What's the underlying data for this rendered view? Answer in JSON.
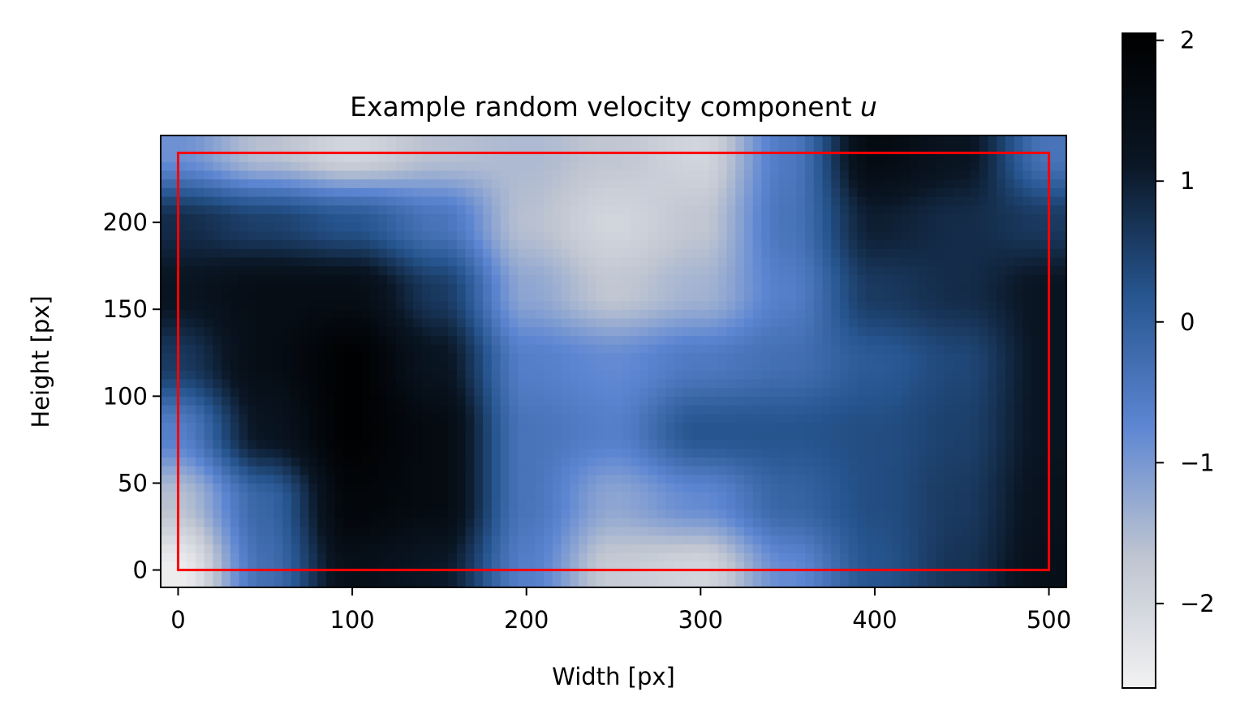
{
  "chart_data": {
    "type": "heatmap",
    "title": "Example random velocity component ",
    "title_var": "u",
    "xlabel": "Width [px]",
    "ylabel": "Height [px]",
    "xlim": [
      -10,
      510
    ],
    "ylim": [
      -10,
      250
    ],
    "xticks": [
      0,
      100,
      200,
      300,
      400,
      500
    ],
    "yticks": [
      0,
      50,
      100,
      150,
      200
    ],
    "xtick_labels": [
      "0",
      "100",
      "200",
      "300",
      "400",
      "500"
    ],
    "ytick_labels": [
      "0",
      "50",
      "100",
      "150",
      "200"
    ],
    "grid": false,
    "colormap": [
      "#f2f2f2",
      "#bfc5d1",
      "#5d86d2",
      "#26558f",
      "#0a1624",
      "#000000"
    ],
    "colorbar": {
      "range": [
        -2.6,
        2.05
      ],
      "ticks": [
        -2,
        -1,
        0,
        1,
        2
      ],
      "tick_labels": [
        "−2",
        "−1",
        "0",
        "1",
        "2"
      ]
    },
    "highlight_box": {
      "x": [
        0,
        500
      ],
      "y": [
        0,
        240
      ],
      "color": "#ff0000"
    },
    "field_grid": {
      "x": [
        0,
        50,
        100,
        150,
        200,
        250,
        300,
        350,
        400,
        450,
        500
      ],
      "y": [
        0,
        40,
        80,
        120,
        160,
        200,
        240
      ],
      "values": [
        [
          -2.5,
          -0.3,
          1.4,
          1.1,
          -0.6,
          -1.8,
          -2.0,
          -0.8,
          0.2,
          0.7,
          1.4
        ],
        [
          -1.6,
          -0.1,
          1.8,
          1.6,
          -0.4,
          -1.2,
          -0.8,
          -0.1,
          0.3,
          0.6,
          1.3
        ],
        [
          -0.6,
          1.2,
          2.0,
          1.6,
          -0.4,
          -0.6,
          0.2,
          0.2,
          0.3,
          0.5,
          1.2
        ],
        [
          0.6,
          1.5,
          2.0,
          1.2,
          -0.6,
          -0.8,
          -0.5,
          -0.3,
          0.1,
          0.4,
          1.2
        ],
        [
          1.2,
          1.5,
          1.5,
          0.6,
          -1.2,
          -1.7,
          -1.4,
          -0.6,
          0.6,
          0.8,
          1.2
        ],
        [
          0.8,
          0.5,
          0.2,
          -0.4,
          -1.6,
          -2.0,
          -1.7,
          -0.4,
          1.0,
          0.8,
          0.6
        ],
        [
          -0.9,
          -1.6,
          -2.0,
          -1.6,
          -1.5,
          -1.7,
          -2.0,
          -0.5,
          1.6,
          1.2,
          -0.4
        ]
      ]
    }
  }
}
